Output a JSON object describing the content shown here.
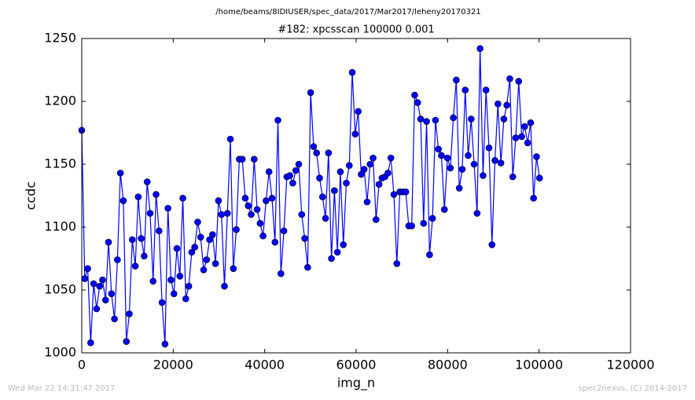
{
  "chart_data": {
    "type": "line",
    "suptitle": "/home/beams/8IDIUSER/spec_data/2017/Mar2017/leheny20170321",
    "title": "#182: xpcsscan 100000 0.001",
    "x_label": "img_n",
    "y_label": "ccdc",
    "footer_left": "Wed Mar 22 14:31:47 2017",
    "footer_right": "spec2nexus, (C) 2014-2017",
    "xlim": [
      0,
      120000
    ],
    "xticks": [
      0,
      20000,
      40000,
      60000,
      80000,
      100000,
      120000
    ],
    "ylim": [
      1000,
      1250
    ],
    "yticks": [
      1000,
      1050,
      1100,
      1150,
      1200,
      1250
    ],
    "grid": false,
    "series": [
      {
        "color": "#0000ff",
        "x": [
          0,
          650,
          1300,
          1950,
          2600,
          3250,
          3900,
          4550,
          5200,
          5850,
          6500,
          7150,
          7800,
          8450,
          9100,
          9750,
          10400,
          11050,
          11700,
          12350,
          13000,
          13650,
          14300,
          14950,
          15600,
          16250,
          16900,
          17550,
          18200,
          18850,
          19500,
          20150,
          20800,
          21450,
          22100,
          22750,
          23400,
          24050,
          24700,
          25350,
          26000,
          26650,
          27300,
          27950,
          28600,
          29250,
          29900,
          30550,
          31200,
          31850,
          32500,
          33150,
          33800,
          34450,
          35100,
          35750,
          36400,
          37050,
          37700,
          38350,
          39000,
          39650,
          40300,
          40950,
          41600,
          42250,
          42900,
          43550,
          44200,
          44850,
          45500,
          46150,
          46800,
          47450,
          48100,
          48750,
          49400,
          50050,
          50700,
          51350,
          52000,
          52650,
          53300,
          53950,
          54600,
          55250,
          55900,
          56550,
          57200,
          57850,
          58500,
          59150,
          59800,
          60450,
          61100,
          61750,
          62400,
          63050,
          63700,
          64350,
          65000,
          65650,
          66300,
          66950,
          67600,
          68250,
          68900,
          69550,
          70200,
          70850,
          71500,
          72150,
          72800,
          73450,
          74100,
          74750,
          75400,
          76050,
          76700,
          77350,
          78000,
          78650,
          79300,
          79950,
          80600,
          81250,
          81900,
          82550,
          83200,
          83850,
          84500,
          85150,
          85800,
          86450,
          87100,
          87750,
          88400,
          89050,
          89700,
          90350,
          91000,
          91650,
          92300,
          92950,
          93600,
          94250,
          94900,
          95550,
          96200,
          96850,
          97500,
          98150,
          98800,
          99450,
          100100
        ],
        "values": [
          1177,
          1059,
          1067,
          1008,
          1055,
          1035,
          1053,
          1058,
          1042,
          1088,
          1047,
          1027,
          1074,
          1143,
          1121,
          1009,
          1031,
          1090,
          1069,
          1124,
          1091,
          1077,
          1136,
          1111,
          1057,
          1126,
          1097,
          1040,
          1007,
          1115,
          1058,
          1047,
          1083,
          1061,
          1123,
          1043,
          1053,
          1080,
          1084,
          1104,
          1092,
          1066,
          1074,
          1090,
          1094,
          1071,
          1121,
          1110,
          1053,
          1111,
          1170,
          1067,
          1098,
          1154,
          1154,
          1123,
          1117,
          1110,
          1154,
          1114,
          1103,
          1093,
          1121,
          1144,
          1123,
          1088,
          1185,
          1063,
          1097,
          1140,
          1141,
          1135,
          1145,
          1150,
          1110,
          1091,
          1068,
          1207,
          1164,
          1159,
          1139,
          1124,
          1107,
          1159,
          1075,
          1129,
          1080,
          1144,
          1086,
          1135,
          1149,
          1223,
          1174,
          1192,
          1142,
          1146,
          1120,
          1150,
          1155,
          1106,
          1134,
          1139,
          1140,
          1143,
          1155,
          1126,
          1071,
          1128,
          1128,
          1128,
          1101,
          1101,
          1205,
          1199,
          1186,
          1103,
          1184,
          1078,
          1107,
          1185,
          1162,
          1157,
          1114,
          1155,
          1147,
          1187,
          1217,
          1131,
          1146,
          1209,
          1157,
          1186,
          1150,
          1111,
          1242,
          1141,
          1209,
          1163,
          1086,
          1153,
          1198,
          1151,
          1186,
          1197,
          1218,
          1140,
          1171,
          1216,
          1172,
          1180,
          1167,
          1183,
          1123,
          1156,
          1139
        ]
      }
    ]
  }
}
